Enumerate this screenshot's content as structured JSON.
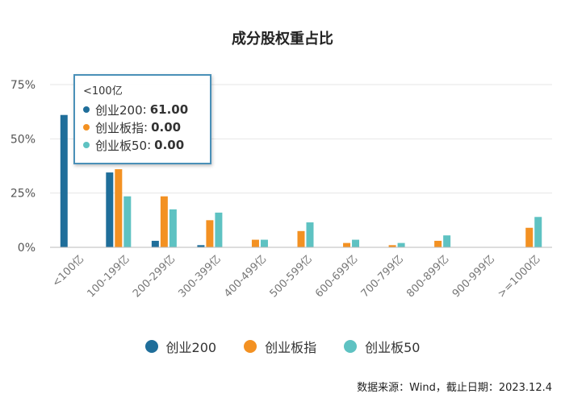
{
  "chart_data": {
    "type": "bar",
    "title": "成分股权重占比",
    "categories": [
      "<100亿",
      "100-199亿",
      "200-299亿",
      "300-399亿",
      "400-499亿",
      "500-599亿",
      "600-699亿",
      "700-799亿",
      "800-899亿",
      "900-999亿",
      ">=1000亿"
    ],
    "series": [
      {
        "name": "创业200",
        "color": "#1f6e9a",
        "values": [
          61.0,
          34.5,
          3.0,
          1.0,
          0,
          0,
          0,
          0,
          0,
          0,
          0
        ]
      },
      {
        "name": "创业板指",
        "color": "#f39122",
        "values": [
          0,
          36.0,
          23.5,
          12.5,
          3.5,
          7.5,
          2.0,
          1.0,
          3.0,
          0,
          9.0
        ]
      },
      {
        "name": "创业板50",
        "color": "#5ec2c2",
        "values": [
          0,
          23.5,
          17.5,
          16.0,
          3.5,
          11.5,
          3.5,
          2.0,
          5.5,
          0,
          14.0
        ]
      }
    ],
    "ylim": [
      0,
      75
    ],
    "yticks": [
      "0%",
      "25%",
      "50%",
      "75%"
    ],
    "ytick_values": [
      0,
      25,
      50,
      75
    ],
    "legend_position": "bottom",
    "grid": true,
    "xlabel": "",
    "ylabel": ""
  },
  "tooltip": {
    "header": "<100亿",
    "rows": [
      {
        "name": "创业200",
        "value": "61.00",
        "color": "#1f6e9a"
      },
      {
        "name": "创业板指",
        "value": "0.00",
        "color": "#f39122"
      },
      {
        "name": "创业板50",
        "value": "0.00",
        "color": "#5ec2c2"
      }
    ]
  },
  "source": "数据来源：Wind，截止日期：2023.12.4"
}
